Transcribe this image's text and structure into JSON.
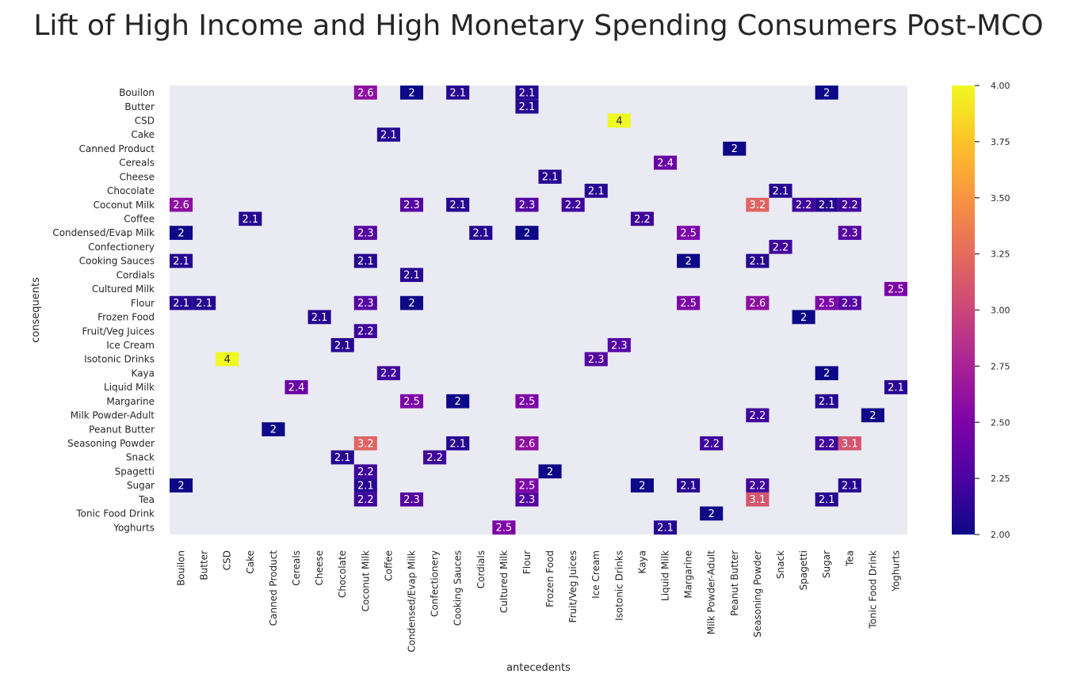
{
  "chart_data": {
    "type": "heatmap",
    "title": "Lift of High Income and High Monetary Spending Consumers Post-MCO",
    "xlabel": "antecedents",
    "ylabel": "consequents",
    "colormap": "plasma",
    "background_color": "#eaeaf2",
    "value_range": [
      2.0,
      4.0
    ],
    "colorbar_ticks": [
      "2.00",
      "2.25",
      "2.50",
      "2.75",
      "3.00",
      "3.25",
      "3.50",
      "3.75",
      "4.00"
    ],
    "x_categories": [
      "Bouilon",
      "Butter",
      "CSD",
      "Cake",
      "Canned Product",
      "Cereals",
      "Cheese",
      "Chocolate",
      "Coconut Milk",
      "Coffee",
      "Condensed/Evap Milk",
      "Confectionery",
      "Cooking Sauces",
      "Cordials",
      "Cultured Milk",
      "Flour",
      "Frozen Food",
      "Fruit/Veg Juices",
      "Ice Cream",
      "Isotonic Drinks",
      "Kaya",
      "Liquid Milk",
      "Margarine",
      "Milk Powder-Adult",
      "Peanut Butter",
      "Seasoning Powder",
      "Snack",
      "Spagetti",
      "Sugar",
      "Tea",
      "Tonic Food Drink",
      "Yoghurts"
    ],
    "y_categories": [
      "Bouilon",
      "Butter",
      "CSD",
      "Cake",
      "Canned Product",
      "Cereals",
      "Cheese",
      "Chocolate",
      "Coconut Milk",
      "Coffee",
      "Condensed/Evap Milk",
      "Confectionery",
      "Cooking Sauces",
      "Cordials",
      "Cultured Milk",
      "Flour",
      "Frozen Food",
      "Fruit/Veg Juices",
      "Ice Cream",
      "Isotonic Drinks",
      "Kaya",
      "Liquid Milk",
      "Margarine",
      "Milk Powder-Adult",
      "Peanut Butter",
      "Seasoning Powder",
      "Snack",
      "Spagetti",
      "Sugar",
      "Tea",
      "Tonic Food Drink",
      "Yoghurts"
    ],
    "cells": [
      {
        "y": "Bouilon",
        "x": "Coconut Milk",
        "value": 2.6,
        "label": "2.6"
      },
      {
        "y": "Bouilon",
        "x": "Condensed/Evap Milk",
        "value": 2.0,
        "label": "2"
      },
      {
        "y": "Bouilon",
        "x": "Cooking Sauces",
        "value": 2.1,
        "label": "2.1"
      },
      {
        "y": "Bouilon",
        "x": "Flour",
        "value": 2.1,
        "label": "2.1"
      },
      {
        "y": "Bouilon",
        "x": "Sugar",
        "value": 2.0,
        "label": "2"
      },
      {
        "y": "Butter",
        "x": "Flour",
        "value": 2.1,
        "label": "2.1"
      },
      {
        "y": "CSD",
        "x": "Isotonic Drinks",
        "value": 4.0,
        "label": "4"
      },
      {
        "y": "Cake",
        "x": "Coffee",
        "value": 2.1,
        "label": "2.1"
      },
      {
        "y": "Canned Product",
        "x": "Peanut Butter",
        "value": 2.0,
        "label": "2"
      },
      {
        "y": "Cereals",
        "x": "Liquid Milk",
        "value": 2.4,
        "label": "2.4"
      },
      {
        "y": "Cheese",
        "x": "Frozen Food",
        "value": 2.1,
        "label": "2.1"
      },
      {
        "y": "Chocolate",
        "x": "Ice Cream",
        "value": 2.1,
        "label": "2.1"
      },
      {
        "y": "Chocolate",
        "x": "Snack",
        "value": 2.1,
        "label": "2.1"
      },
      {
        "y": "Coconut Milk",
        "x": "Bouilon",
        "value": 2.6,
        "label": "2.6"
      },
      {
        "y": "Coconut Milk",
        "x": "Condensed/Evap Milk",
        "value": 2.3,
        "label": "2.3"
      },
      {
        "y": "Coconut Milk",
        "x": "Cooking Sauces",
        "value": 2.1,
        "label": "2.1"
      },
      {
        "y": "Coconut Milk",
        "x": "Flour",
        "value": 2.3,
        "label": "2.3"
      },
      {
        "y": "Coconut Milk",
        "x": "Fruit/Veg Juices",
        "value": 2.2,
        "label": "2.2"
      },
      {
        "y": "Coconut Milk",
        "x": "Seasoning Powder",
        "value": 3.2,
        "label": "3.2"
      },
      {
        "y": "Coconut Milk",
        "x": "Spagetti",
        "value": 2.2,
        "label": "2.2"
      },
      {
        "y": "Coconut Milk",
        "x": "Sugar",
        "value": 2.1,
        "label": "2.1"
      },
      {
        "y": "Coconut Milk",
        "x": "Tea",
        "value": 2.2,
        "label": "2.2"
      },
      {
        "y": "Coffee",
        "x": "Cake",
        "value": 2.1,
        "label": "2.1"
      },
      {
        "y": "Coffee",
        "x": "Kaya",
        "value": 2.2,
        "label": "2.2"
      },
      {
        "y": "Condensed/Evap Milk",
        "x": "Bouilon",
        "value": 2.0,
        "label": "2"
      },
      {
        "y": "Condensed/Evap Milk",
        "x": "Coconut Milk",
        "value": 2.3,
        "label": "2.3"
      },
      {
        "y": "Condensed/Evap Milk",
        "x": "Cordials",
        "value": 2.1,
        "label": "2.1"
      },
      {
        "y": "Condensed/Evap Milk",
        "x": "Flour",
        "value": 2.0,
        "label": "2"
      },
      {
        "y": "Condensed/Evap Milk",
        "x": "Margarine",
        "value": 2.5,
        "label": "2.5"
      },
      {
        "y": "Condensed/Evap Milk",
        "x": "Tea",
        "value": 2.3,
        "label": "2.3"
      },
      {
        "y": "Confectionery",
        "x": "Snack",
        "value": 2.2,
        "label": "2.2"
      },
      {
        "y": "Cooking Sauces",
        "x": "Bouilon",
        "value": 2.1,
        "label": "2.1"
      },
      {
        "y": "Cooking Sauces",
        "x": "Coconut Milk",
        "value": 2.1,
        "label": "2.1"
      },
      {
        "y": "Cooking Sauces",
        "x": "Margarine",
        "value": 2.0,
        "label": "2"
      },
      {
        "y": "Cooking Sauces",
        "x": "Seasoning Powder",
        "value": 2.1,
        "label": "2.1"
      },
      {
        "y": "Cordials",
        "x": "Condensed/Evap Milk",
        "value": 2.1,
        "label": "2.1"
      },
      {
        "y": "Cultured Milk",
        "x": "Yoghurts",
        "value": 2.5,
        "label": "2.5"
      },
      {
        "y": "Flour",
        "x": "Bouilon",
        "value": 2.1,
        "label": "2.1"
      },
      {
        "y": "Flour",
        "x": "Butter",
        "value": 2.1,
        "label": "2.1"
      },
      {
        "y": "Flour",
        "x": "Coconut Milk",
        "value": 2.3,
        "label": "2.3"
      },
      {
        "y": "Flour",
        "x": "Condensed/Evap Milk",
        "value": 2.0,
        "label": "2"
      },
      {
        "y": "Flour",
        "x": "Margarine",
        "value": 2.5,
        "label": "2.5"
      },
      {
        "y": "Flour",
        "x": "Seasoning Powder",
        "value": 2.6,
        "label": "2.6"
      },
      {
        "y": "Flour",
        "x": "Sugar",
        "value": 2.5,
        "label": "2.5"
      },
      {
        "y": "Flour",
        "x": "Tea",
        "value": 2.3,
        "label": "2.3"
      },
      {
        "y": "Frozen Food",
        "x": "Cheese",
        "value": 2.1,
        "label": "2.1"
      },
      {
        "y": "Frozen Food",
        "x": "Spagetti",
        "value": 2.0,
        "label": "2"
      },
      {
        "y": "Fruit/Veg Juices",
        "x": "Coconut Milk",
        "value": 2.2,
        "label": "2.2"
      },
      {
        "y": "Ice Cream",
        "x": "Chocolate",
        "value": 2.1,
        "label": "2.1"
      },
      {
        "y": "Ice Cream",
        "x": "Isotonic Drinks",
        "value": 2.3,
        "label": "2.3"
      },
      {
        "y": "Isotonic Drinks",
        "x": "CSD",
        "value": 4.0,
        "label": "4"
      },
      {
        "y": "Isotonic Drinks",
        "x": "Ice Cream",
        "value": 2.3,
        "label": "2.3"
      },
      {
        "y": "Kaya",
        "x": "Coffee",
        "value": 2.2,
        "label": "2.2"
      },
      {
        "y": "Kaya",
        "x": "Sugar",
        "value": 2.0,
        "label": "2"
      },
      {
        "y": "Liquid Milk",
        "x": "Cereals",
        "value": 2.4,
        "label": "2.4"
      },
      {
        "y": "Liquid Milk",
        "x": "Yoghurts",
        "value": 2.1,
        "label": "2.1"
      },
      {
        "y": "Margarine",
        "x": "Condensed/Evap Milk",
        "value": 2.5,
        "label": "2.5"
      },
      {
        "y": "Margarine",
        "x": "Cooking Sauces",
        "value": 2.0,
        "label": "2"
      },
      {
        "y": "Margarine",
        "x": "Flour",
        "value": 2.5,
        "label": "2.5"
      },
      {
        "y": "Margarine",
        "x": "Sugar",
        "value": 2.1,
        "label": "2.1"
      },
      {
        "y": "Milk Powder-Adult",
        "x": "Seasoning Powder",
        "value": 2.2,
        "label": "2.2"
      },
      {
        "y": "Milk Powder-Adult",
        "x": "Tonic Food Drink",
        "value": 2.0,
        "label": "2"
      },
      {
        "y": "Peanut Butter",
        "x": "Canned Product",
        "value": 2.0,
        "label": "2"
      },
      {
        "y": "Seasoning Powder",
        "x": "Coconut Milk",
        "value": 3.2,
        "label": "3.2"
      },
      {
        "y": "Seasoning Powder",
        "x": "Cooking Sauces",
        "value": 2.1,
        "label": "2.1"
      },
      {
        "y": "Seasoning Powder",
        "x": "Flour",
        "value": 2.6,
        "label": "2.6"
      },
      {
        "y": "Seasoning Powder",
        "x": "Milk Powder-Adult",
        "value": 2.2,
        "label": "2.2"
      },
      {
        "y": "Seasoning Powder",
        "x": "Sugar",
        "value": 2.2,
        "label": "2.2"
      },
      {
        "y": "Seasoning Powder",
        "x": "Tea",
        "value": 3.1,
        "label": "3.1"
      },
      {
        "y": "Snack",
        "x": "Chocolate",
        "value": 2.1,
        "label": "2.1"
      },
      {
        "y": "Snack",
        "x": "Confectionery",
        "value": 2.2,
        "label": "2.2"
      },
      {
        "y": "Spagetti",
        "x": "Coconut Milk",
        "value": 2.2,
        "label": "2.2"
      },
      {
        "y": "Spagetti",
        "x": "Frozen Food",
        "value": 2.0,
        "label": "2"
      },
      {
        "y": "Sugar",
        "x": "Bouilon",
        "value": 2.0,
        "label": "2"
      },
      {
        "y": "Sugar",
        "x": "Coconut Milk",
        "value": 2.1,
        "label": "2.1"
      },
      {
        "y": "Sugar",
        "x": "Flour",
        "value": 2.5,
        "label": "2.5"
      },
      {
        "y": "Sugar",
        "x": "Kaya",
        "value": 2.0,
        "label": "2"
      },
      {
        "y": "Sugar",
        "x": "Margarine",
        "value": 2.1,
        "label": "2.1"
      },
      {
        "y": "Sugar",
        "x": "Seasoning Powder",
        "value": 2.2,
        "label": "2.2"
      },
      {
        "y": "Sugar",
        "x": "Tea",
        "value": 2.1,
        "label": "2.1"
      },
      {
        "y": "Tea",
        "x": "Coconut Milk",
        "value": 2.2,
        "label": "2.2"
      },
      {
        "y": "Tea",
        "x": "Condensed/Evap Milk",
        "value": 2.3,
        "label": "2.3"
      },
      {
        "y": "Tea",
        "x": "Flour",
        "value": 2.3,
        "label": "2.3"
      },
      {
        "y": "Tea",
        "x": "Seasoning Powder",
        "value": 3.1,
        "label": "3.1"
      },
      {
        "y": "Tea",
        "x": "Sugar",
        "value": 2.1,
        "label": "2.1"
      },
      {
        "y": "Tonic Food Drink",
        "x": "Milk Powder-Adult",
        "value": 2.0,
        "label": "2"
      },
      {
        "y": "Yoghurts",
        "x": "Cultured Milk",
        "value": 2.5,
        "label": "2.5"
      },
      {
        "y": "Yoghurts",
        "x": "Liquid Milk",
        "value": 2.1,
        "label": "2.1"
      }
    ]
  }
}
